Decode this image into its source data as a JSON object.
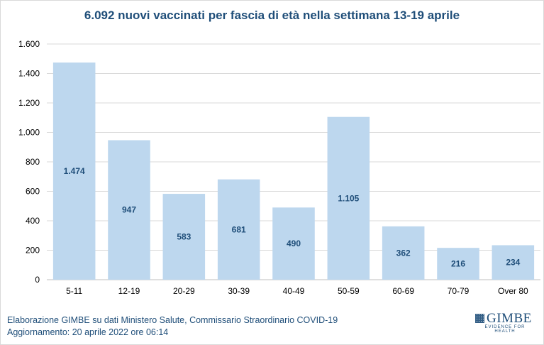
{
  "chart_data": {
    "type": "bar",
    "title": "6.092 nuovi vaccinati per fascia di età nella settimana 13-19 aprile",
    "categories": [
      "5-11",
      "12-19",
      "20-29",
      "30-39",
      "40-49",
      "50-59",
      "60-69",
      "70-79",
      "Over 80"
    ],
    "values": [
      1474,
      947,
      583,
      681,
      490,
      1105,
      362,
      216,
      234
    ],
    "value_labels": [
      "1.474",
      "947",
      "583",
      "681",
      "490",
      "1.105",
      "362",
      "216",
      "234"
    ],
    "ylim": [
      0,
      1600
    ],
    "yticks": [
      0,
      200,
      400,
      600,
      800,
      1000,
      1200,
      1400,
      1600
    ],
    "ytick_labels": [
      "0",
      "200",
      "400",
      "600",
      "800",
      "1.000",
      "1.200",
      "1.400",
      "1.600"
    ],
    "grid": true,
    "bar_color": "#bdd7ee",
    "label_color": "#1f4e79"
  },
  "footer": {
    "source": "Elaborazione GIMBE su dati Ministero Salute, Commissario Straordinario COVID-19",
    "updated": "Aggiornamento: 20 aprile 2022 ore 06:14"
  },
  "logo": {
    "name": "GIMBE",
    "tagline": "EVIDENCE FOR HEALTH"
  }
}
